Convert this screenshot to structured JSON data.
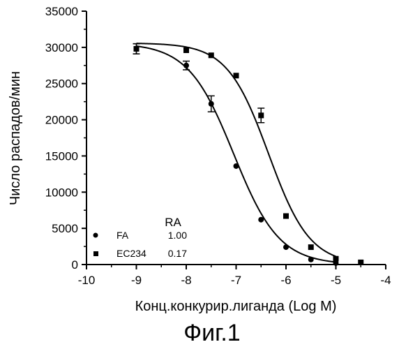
{
  "chart_data": {
    "type": "scatter",
    "xlabel": "Конц.конкурир.лиганда (Log M)",
    "ylabel": "Число распадов/мин",
    "caption": "Фиг.1",
    "xlim": [
      -10,
      -4
    ],
    "ylim": [
      0,
      35000
    ],
    "x_ticks": [
      -10,
      -9,
      -8,
      -7,
      -6,
      -5,
      -4
    ],
    "y_ticks": [
      0,
      5000,
      10000,
      15000,
      20000,
      25000,
      30000,
      35000
    ],
    "legend_header": "RA",
    "series": [
      {
        "name": "FA",
        "ra": "1.00",
        "marker": "circle",
        "x": [
          -9,
          -8,
          -7.5,
          -7,
          -6.5,
          -6,
          -5.5,
          -5
        ],
        "y": [
          29800,
          27500,
          22200,
          13600,
          6200,
          2400,
          700,
          200
        ],
        "err": [
          700,
          600,
          1100,
          0,
          0,
          0,
          0,
          0
        ],
        "fit": {
          "top": 30600,
          "bottom": 0,
          "logEC50": -7.05,
          "hill": 0.95
        }
      },
      {
        "name": "EC234",
        "ra": "0.17",
        "marker": "square",
        "x": [
          -9,
          -8,
          -7.5,
          -7,
          -6.5,
          -6,
          -5.5,
          -5,
          -4.5
        ],
        "y": [
          29800,
          29600,
          28900,
          26100,
          20600,
          6700,
          2400,
          800,
          300
        ],
        "err": [
          700,
          0,
          0,
          0,
          1000,
          0,
          0,
          0,
          0
        ],
        "fit": {
          "top": 30600,
          "bottom": 0,
          "logEC50": -6.35,
          "hill": 1.05
        }
      }
    ]
  }
}
